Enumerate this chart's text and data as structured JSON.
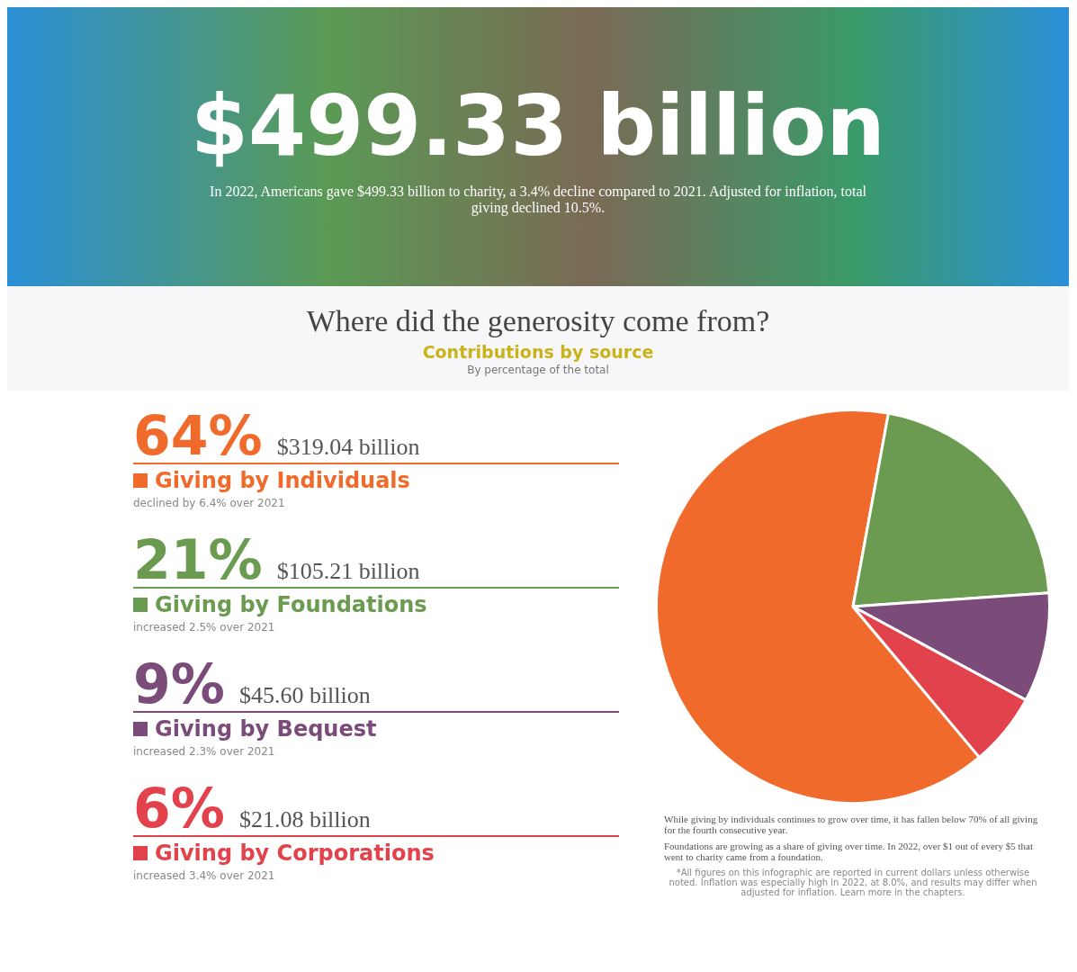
{
  "chart_data": {
    "type": "pie",
    "title": "Where did the generosity come from?",
    "subtitle": "Contributions by source",
    "categories": [
      "Giving by Individuals",
      "Giving by Foundations",
      "Giving by Bequest",
      "Giving by Corporations"
    ],
    "values": [
      64,
      21,
      9,
      6
    ],
    "colors": [
      "#f06a2c",
      "#6b9b50",
      "#7b4b79",
      "#e2424b"
    ],
    "value_labels": [
      "64%",
      "21%",
      "9%",
      "6%"
    ],
    "annotations": [
      "$499.33 billion",
      "In 2022, Americans gave $499.33 billion to charity, a 3.4% decline compared to 2021. Adjusted for inflation, total giving declined 10.5%.",
      "By percentage of the total",
      "$319.04 billion",
      "$105.21 billion",
      "$45.60 billion",
      "$21.08 billion",
      "declined by 6.4% over 2021",
      "increased 2.5% over 2021",
      "increased 2.3% over 2021",
      "increased 3.4% over 2021",
      "While giving by individuals continues to grow over time, it has fallen below 70% of all giving for the fourth consecutive year.",
      "Foundations are growing as a share of giving over time. In 2022, over $1 out of every $5 that went to charity came from a foundation.",
      "*All figures on this infographic are reported in current dollars unless otherwise noted. Inflation was especially high in 2022, at 8.0%, and results may differ when adjusted for inflation. Learn more in the chapters."
    ],
    "legend": "left"
  }
}
